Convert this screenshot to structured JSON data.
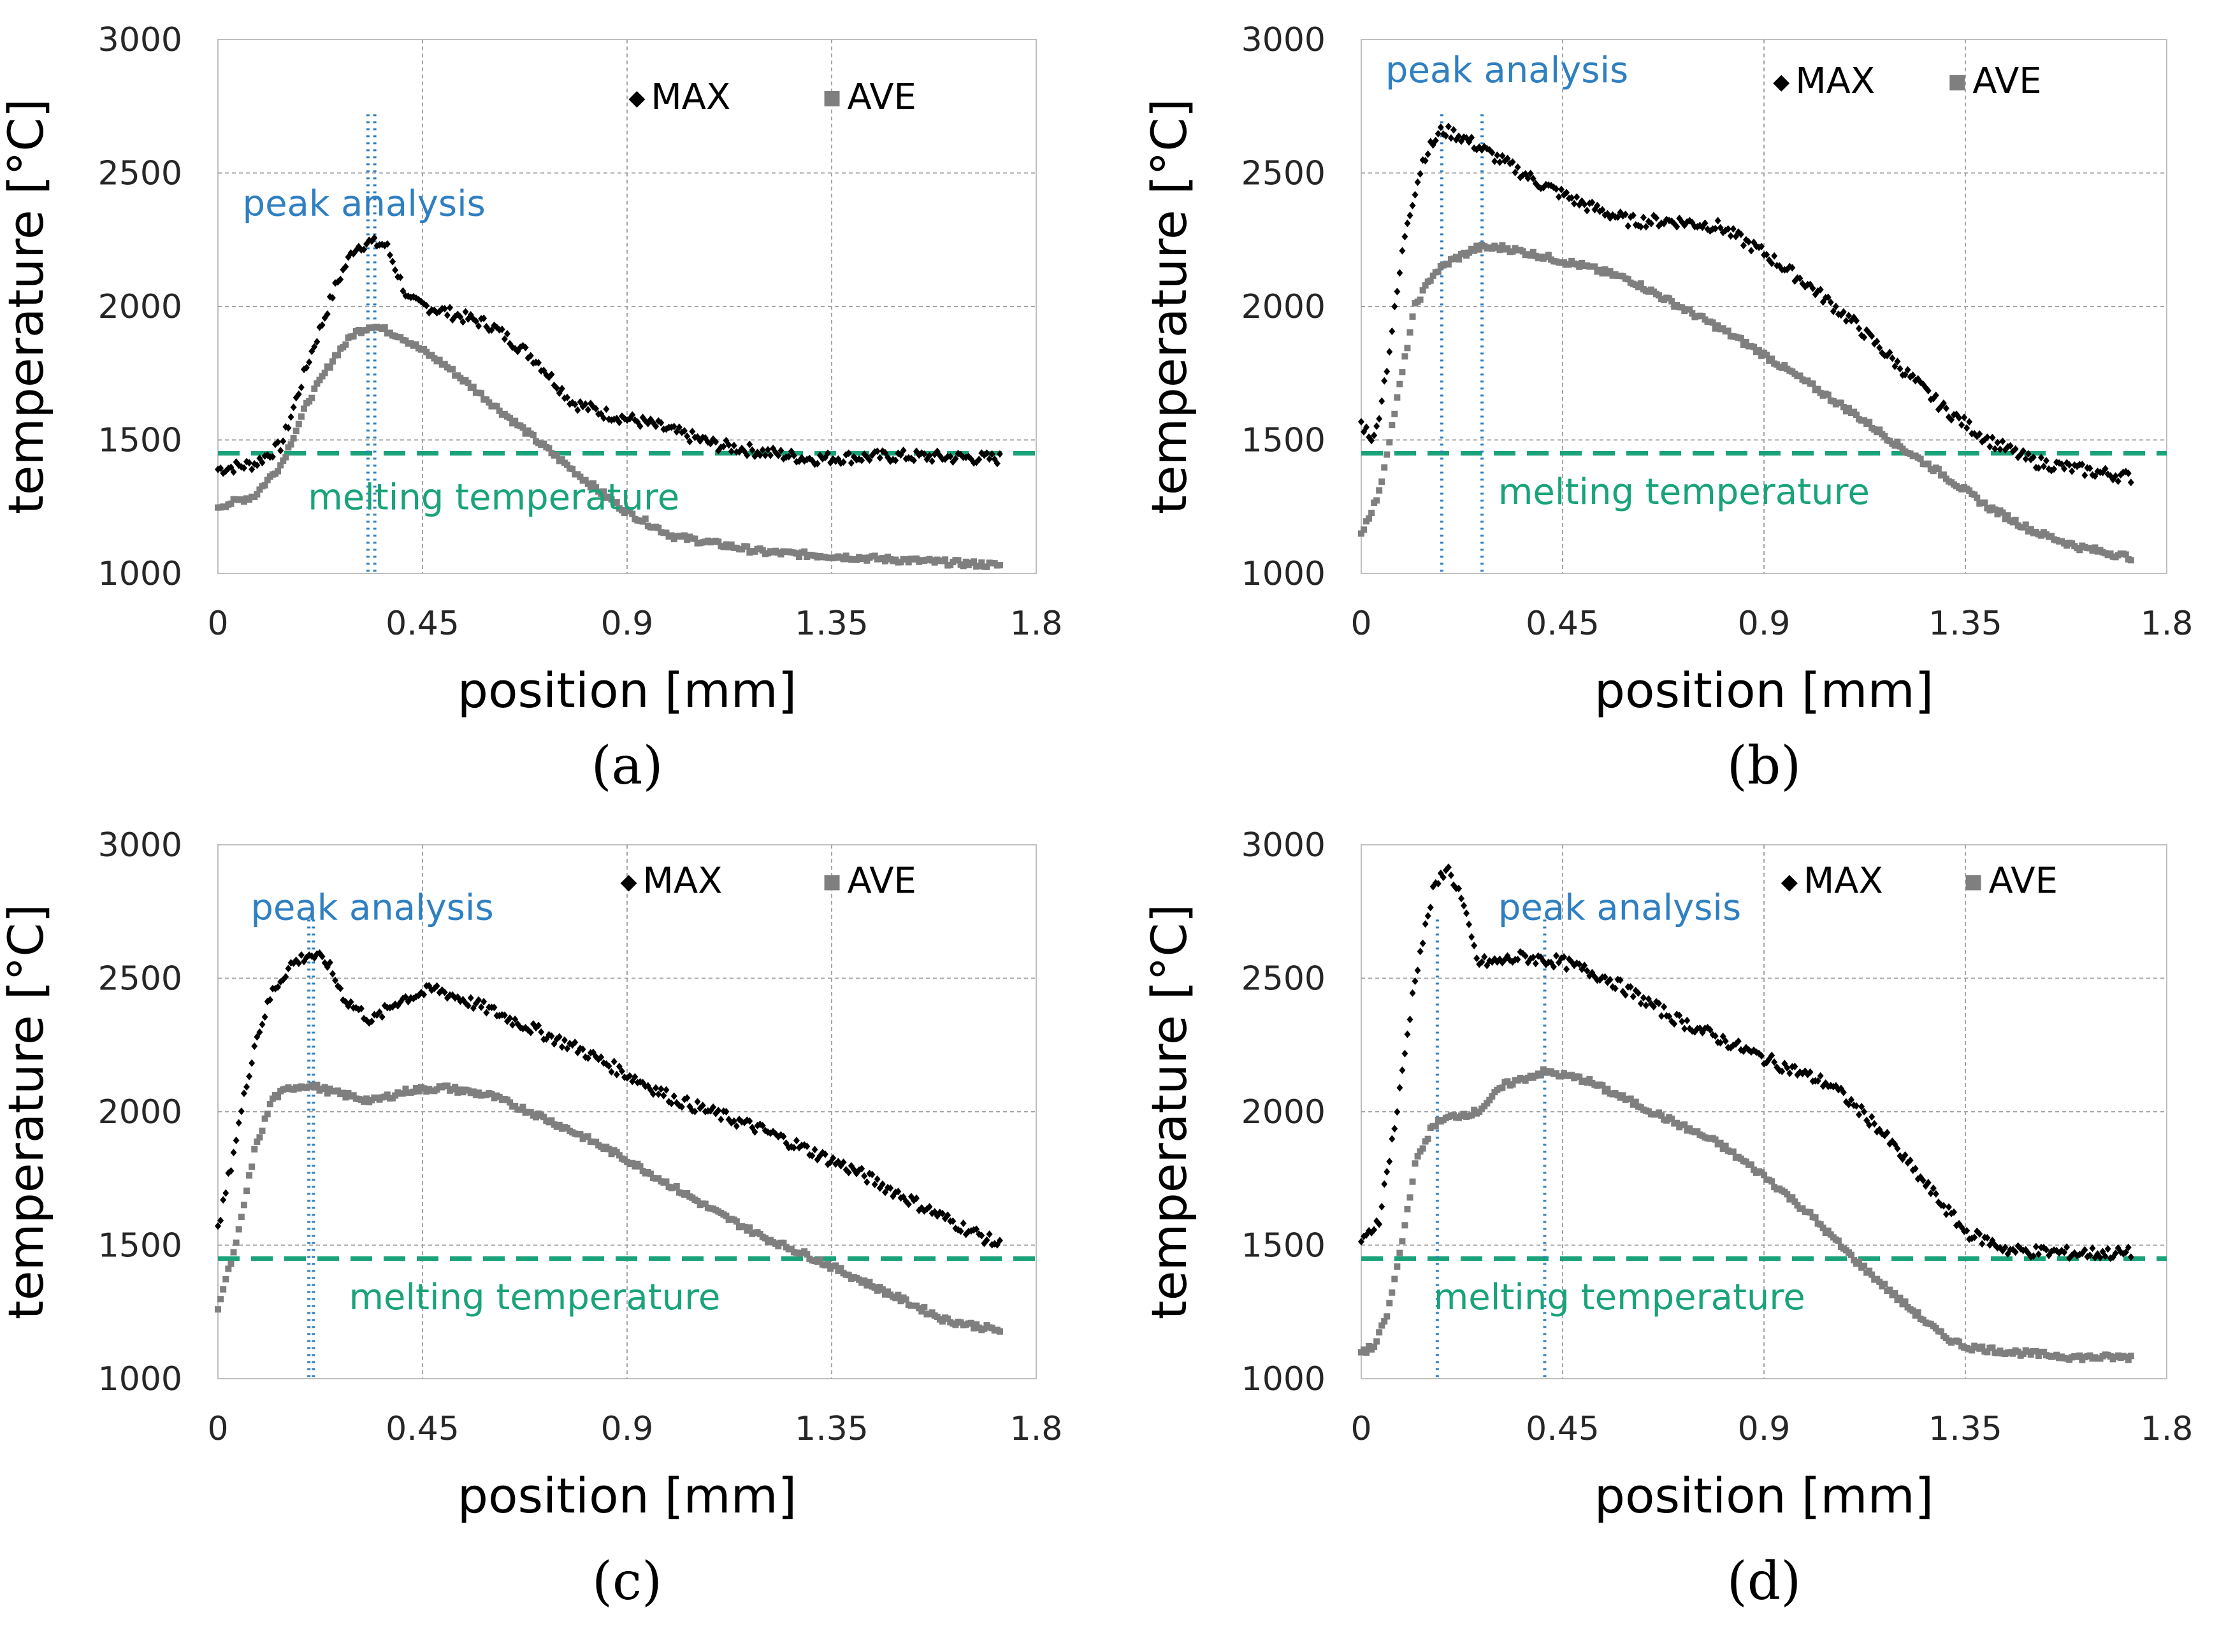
{
  "figure": {
    "panel_count": 4
  },
  "chart_data": [
    {
      "panel_label": "(a)",
      "type": "scatter",
      "xlabel": "position [mm]",
      "ylabel": "temperature [°C]",
      "xlim": [
        0,
        1.8
      ],
      "ylim": [
        1000,
        3000
      ],
      "xticks": [
        "0",
        "0.45",
        "0.9",
        "1.35",
        "1.8"
      ],
      "yticks": [
        "1000",
        "1500",
        "2000",
        "2500",
        "3000"
      ],
      "grid": true,
      "legend": {
        "placement": "top-right",
        "max_label": "MAX",
        "ave_label": "AVE"
      },
      "melting": {
        "value": 1450,
        "label": "melting temperature",
        "color": "#1aa37a"
      },
      "peak": {
        "label": "peak analysis",
        "color": "#2f7fc1",
        "lines": [
          0.33,
          0.345
        ]
      },
      "series": [
        {
          "name": "MAX",
          "color": "#000000",
          "marker": "diamond",
          "x": [
            0,
            0.08,
            0.14,
            0.2,
            0.26,
            0.3,
            0.33,
            0.37,
            0.42,
            0.5,
            0.6,
            0.7,
            0.78,
            0.85,
            0.95,
            1.1,
            1.3,
            1.5,
            1.72
          ],
          "y": [
            1390,
            1410,
            1480,
            1800,
            2080,
            2220,
            2240,
            2230,
            2020,
            1980,
            1930,
            1800,
            1640,
            1600,
            1560,
            1480,
            1430,
            1440,
            1430
          ]
        },
        {
          "name": "AVE",
          "color": "#7f7f7f",
          "marker": "square",
          "x": [
            0,
            0.08,
            0.14,
            0.2,
            0.26,
            0.3,
            0.34,
            0.4,
            0.5,
            0.6,
            0.7,
            0.8,
            0.9,
            1.0,
            1.2,
            1.4,
            1.72
          ],
          "y": [
            1250,
            1290,
            1410,
            1650,
            1820,
            1900,
            1930,
            1890,
            1780,
            1640,
            1500,
            1360,
            1230,
            1140,
            1080,
            1060,
            1030
          ]
        }
      ]
    },
    {
      "panel_label": "(b)",
      "type": "scatter",
      "xlabel": "position [mm]",
      "ylabel": "temperature [°C]",
      "xlim": [
        0,
        1.8
      ],
      "ylim": [
        1000,
        3000
      ],
      "xticks": [
        "0",
        "0.45",
        "0.9",
        "1.35",
        "1.8"
      ],
      "yticks": [
        "1000",
        "1500",
        "2000",
        "2500",
        "3000"
      ],
      "grid": true,
      "legend": {
        "placement": "top-right",
        "max_label": "MAX",
        "ave_label": "AVE"
      },
      "melting": {
        "value": 1450,
        "label": "melting temperature",
        "color": "#1aa37a"
      },
      "peak": {
        "label": "peak analysis",
        "color": "#2f7fc1",
        "lines": [
          0.18,
          0.27
        ]
      },
      "series": [
        {
          "name": "MAX",
          "color": "#000000",
          "marker": "diamond",
          "x": [
            0,
            0.03,
            0.06,
            0.1,
            0.14,
            0.18,
            0.22,
            0.3,
            0.4,
            0.5,
            0.6,
            0.7,
            0.8,
            0.9,
            1.0,
            1.1,
            1.2,
            1.3,
            1.4,
            1.5,
            1.6,
            1.72
          ],
          "y": [
            1560,
            1500,
            1800,
            2300,
            2560,
            2660,
            2640,
            2560,
            2460,
            2380,
            2320,
            2320,
            2300,
            2200,
            2080,
            1940,
            1780,
            1620,
            1500,
            1420,
            1390,
            1360
          ]
        },
        {
          "name": "AVE",
          "color": "#7f7f7f",
          "marker": "square",
          "x": [
            0,
            0.04,
            0.08,
            0.12,
            0.16,
            0.2,
            0.26,
            0.32,
            0.4,
            0.5,
            0.6,
            0.7,
            0.8,
            0.9,
            1.0,
            1.1,
            1.2,
            1.3,
            1.4,
            1.5,
            1.6,
            1.72
          ],
          "y": [
            1150,
            1300,
            1650,
            2000,
            2120,
            2170,
            2220,
            2220,
            2190,
            2150,
            2100,
            2010,
            1920,
            1820,
            1710,
            1600,
            1480,
            1370,
            1250,
            1160,
            1100,
            1060
          ]
        }
      ]
    },
    {
      "panel_label": "(c)",
      "type": "scatter",
      "xlabel": "position [mm]",
      "ylabel": "temperature [°C]",
      "xlim": [
        0,
        1.8
      ],
      "ylim": [
        1000,
        3000
      ],
      "xticks": [
        "0",
        "0.45",
        "0.9",
        "1.35",
        "1.8"
      ],
      "yticks": [
        "1000",
        "1500",
        "2000",
        "2500",
        "3000"
      ],
      "grid": true,
      "legend": {
        "placement": "top-right",
        "max_label": "MAX",
        "ave_label": "AVE"
      },
      "melting": {
        "value": 1450,
        "label": "melting temperature",
        "color": "#1aa37a"
      },
      "peak": {
        "label": "peak analysis",
        "color": "#2f7fc1",
        "lines": [
          0.2,
          0.21
        ]
      },
      "series": [
        {
          "name": "MAX",
          "color": "#000000",
          "marker": "diamond",
          "x": [
            0,
            0.04,
            0.08,
            0.12,
            0.16,
            0.2,
            0.24,
            0.28,
            0.34,
            0.4,
            0.48,
            0.6,
            0.8,
            1.0,
            1.2,
            1.4,
            1.6,
            1.72
          ],
          "y": [
            1550,
            1900,
            2250,
            2450,
            2550,
            2590,
            2560,
            2420,
            2340,
            2420,
            2460,
            2380,
            2230,
            2050,
            1930,
            1780,
            1600,
            1500
          ]
        },
        {
          "name": "AVE",
          "color": "#7f7f7f",
          "marker": "square",
          "x": [
            0,
            0.04,
            0.08,
            0.12,
            0.16,
            0.2,
            0.26,
            0.34,
            0.42,
            0.5,
            0.6,
            0.7,
            0.8,
            0.9,
            1.0,
            1.1,
            1.2,
            1.3,
            1.4,
            1.5,
            1.6,
            1.72
          ],
          "y": [
            1270,
            1500,
            1850,
            2050,
            2090,
            2100,
            2070,
            2040,
            2080,
            2090,
            2060,
            1990,
            1910,
            1820,
            1720,
            1620,
            1530,
            1460,
            1380,
            1300,
            1220,
            1180
          ]
        }
      ]
    },
    {
      "panel_label": "(d)",
      "type": "scatter",
      "xlabel": "position [mm]",
      "ylabel": "temperature [°C]",
      "xlim": [
        0,
        1.8
      ],
      "ylim": [
        1000,
        3000
      ],
      "xticks": [
        "0",
        "0.45",
        "0.9",
        "1.35",
        "1.8"
      ],
      "yticks": [
        "1000",
        "1500",
        "2000",
        "2500",
        "3000"
      ],
      "grid": true,
      "legend": {
        "placement": "top-right",
        "max_label": "MAX",
        "ave_label": "AVE"
      },
      "melting": {
        "value": 1450,
        "label": "melting temperature",
        "color": "#1aa37a"
      },
      "peak": {
        "label": "peak analysis",
        "color": "#2f7fc1",
        "lines": [
          0.17,
          0.41
        ]
      },
      "series": [
        {
          "name": "MAX",
          "color": "#000000",
          "marker": "diamond",
          "x": [
            0,
            0.04,
            0.08,
            0.12,
            0.16,
            0.19,
            0.22,
            0.26,
            0.3,
            0.36,
            0.45,
            0.55,
            0.7,
            0.9,
            1.05,
            1.15,
            1.25,
            1.35,
            1.45,
            1.6,
            1.72
          ],
          "y": [
            1500,
            1600,
            2000,
            2500,
            2820,
            2920,
            2820,
            2560,
            2560,
            2580,
            2560,
            2500,
            2350,
            2200,
            2100,
            1950,
            1750,
            1550,
            1480,
            1470,
            1470
          ]
        },
        {
          "name": "AVE",
          "color": "#7f7f7f",
          "marker": "square",
          "x": [
            0,
            0.03,
            0.06,
            0.09,
            0.12,
            0.16,
            0.2,
            0.26,
            0.32,
            0.41,
            0.5,
            0.6,
            0.7,
            0.8,
            0.9,
            1.0,
            1.1,
            1.2,
            1.3,
            1.35,
            1.45,
            1.6,
            1.72
          ],
          "y": [
            1100,
            1120,
            1250,
            1500,
            1800,
            1950,
            1980,
            2000,
            2100,
            2150,
            2120,
            2040,
            1960,
            1880,
            1760,
            1620,
            1450,
            1300,
            1160,
            1120,
            1100,
            1080,
            1080
          ]
        }
      ]
    }
  ]
}
